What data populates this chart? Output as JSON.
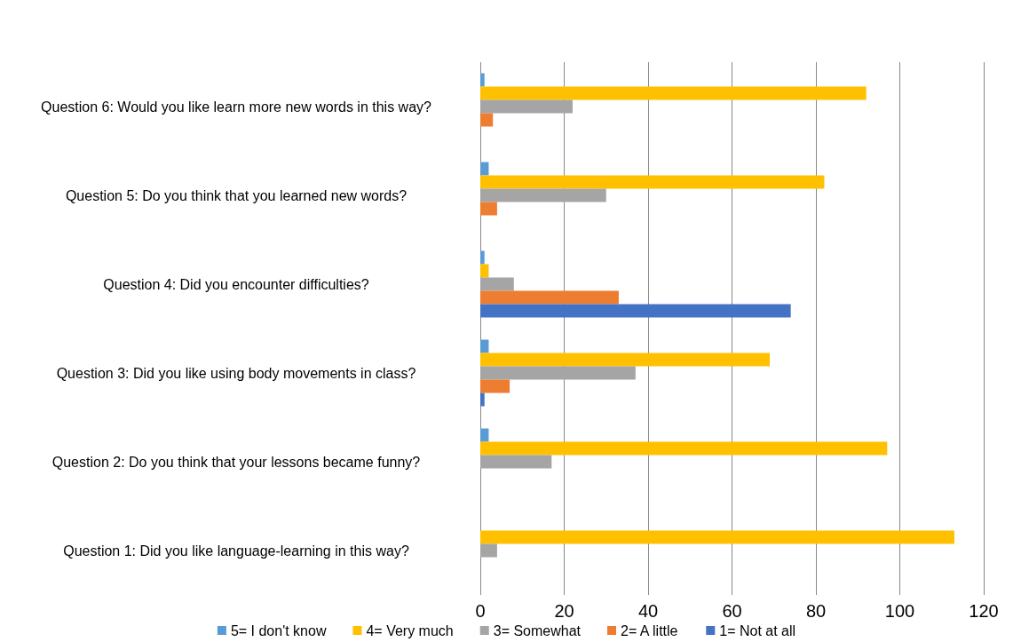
{
  "chart_data": {
    "type": "bar",
    "orientation": "horizontal",
    "categories": [
      "Question 6: Would you like learn more new words in this way?",
      "Question 5: Do you think that you learned new words?",
      "Question 4: Did you encounter difficulties?",
      "Question 3: Did you like using body movements in class?",
      "Question 2: Do you think that your lessons became funny?",
      "Question 1: Did you like language-learning in this way?"
    ],
    "series": [
      {
        "name": "5= I don't know",
        "color": "#5b9bd5",
        "values": [
          1,
          2,
          1,
          2,
          2,
          0
        ]
      },
      {
        "name": "4= Very much",
        "color": "#ffc000",
        "values": [
          92,
          82,
          2,
          69,
          97,
          113
        ]
      },
      {
        "name": "3= Somewhat",
        "color": "#a5a5a5",
        "values": [
          22,
          30,
          8,
          37,
          17,
          4
        ]
      },
      {
        "name": "2= A little",
        "color": "#ed7d31",
        "values": [
          3,
          4,
          33,
          7,
          0,
          0
        ]
      },
      {
        "name": "1= Not at all",
        "color": "#4472c4",
        "values": [
          0,
          0,
          74,
          1,
          0,
          0
        ]
      }
    ],
    "xlim": [
      0,
      120
    ],
    "xticks": [
      0,
      20,
      40,
      60,
      80,
      100,
      120
    ],
    "grid": "x",
    "legend": "bottom"
  }
}
